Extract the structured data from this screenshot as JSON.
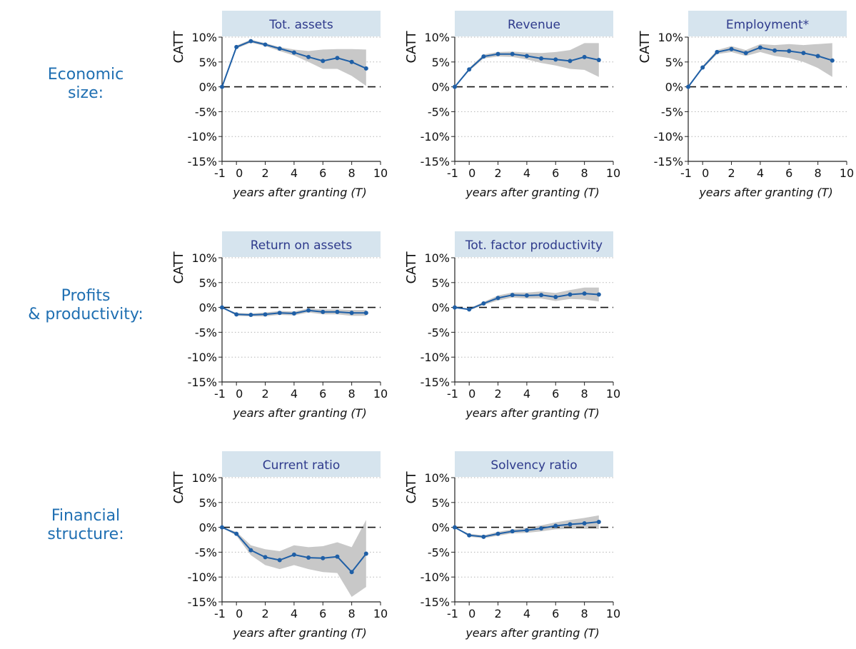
{
  "colors": {
    "line": "#1f5fa6",
    "band": "#c8c8c8",
    "header_bg": "#d6e4ee",
    "header_text": "#2e3a8c",
    "row_label": "#1f6fb2",
    "axis": "#222222"
  },
  "row_labels": [
    "Economic\nsize:",
    "Profits\n& productivity:",
    "Financial\nstructure:"
  ],
  "chart_data": [
    {
      "type": "line",
      "title": "Tot. assets",
      "ylabel": "CATT",
      "xlabel": "years after granting (T)",
      "xlim": [
        -1,
        10
      ],
      "ylim": [
        -15,
        10
      ],
      "x_ticks": [
        -1,
        0,
        2,
        4,
        6,
        8,
        10
      ],
      "y_ticks": [
        "10%",
        "5%",
        "0%",
        "-5%",
        "-10%",
        "-15%"
      ],
      "grid": "dotted horizontal",
      "x": [
        -1,
        0,
        1,
        2,
        3,
        4,
        5,
        6,
        7,
        8,
        9
      ],
      "y": [
        0,
        8.0,
        9.2,
        8.5,
        7.7,
        6.9,
        6.0,
        5.2,
        5.8,
        5.0,
        3.7
      ],
      "band_upper": [
        0,
        8.3,
        9.5,
        8.8,
        8.0,
        7.5,
        7.2,
        7.5,
        7.6,
        7.6,
        7.5
      ],
      "band_lower": [
        0,
        7.7,
        8.9,
        8.2,
        7.2,
        6.3,
        5.0,
        3.6,
        3.6,
        2.2,
        0.2
      ]
    },
    {
      "type": "line",
      "title": "Revenue",
      "ylabel": "CATT",
      "xlabel": "years after granting (T)",
      "xlim": [
        -1,
        10
      ],
      "ylim": [
        -15,
        10
      ],
      "x_ticks": [
        -1,
        0,
        2,
        4,
        6,
        8,
        10
      ],
      "y_ticks": [
        "10%",
        "5%",
        "0%",
        "-5%",
        "-10%",
        "-15%"
      ],
      "grid": "dotted horizontal",
      "x": [
        -1,
        0,
        1,
        2,
        3,
        4,
        5,
        6,
        7,
        8,
        9
      ],
      "y": [
        0,
        3.5,
        6.1,
        6.6,
        6.6,
        6.2,
        5.7,
        5.5,
        5.2,
        6.0,
        5.4
      ],
      "band_upper": [
        0,
        3.8,
        6.5,
        7.0,
        7.1,
        6.9,
        6.8,
        7.0,
        7.4,
        8.8,
        8.8
      ],
      "band_lower": [
        0,
        3.2,
        5.7,
        6.1,
        6.0,
        5.5,
        4.8,
        4.3,
        3.6,
        3.4,
        2.0
      ]
    },
    {
      "type": "line",
      "title": "Employment*",
      "ylabel": "CATT",
      "xlabel": "years after granting (T)",
      "xlim": [
        -1,
        10
      ],
      "ylim": [
        -15,
        10
      ],
      "x_ticks": [
        -1,
        0,
        2,
        4,
        6,
        8,
        10
      ],
      "y_ticks": [
        "10%",
        "5%",
        "0%",
        "-5%",
        "-10%",
        "-15%"
      ],
      "grid": "dotted horizontal",
      "x": [
        -1,
        0,
        1,
        2,
        3,
        4,
        5,
        6,
        7,
        8,
        9
      ],
      "y": [
        0,
        3.9,
        7.0,
        7.6,
        6.8,
        7.9,
        7.3,
        7.2,
        6.8,
        6.2,
        5.3
      ],
      "band_upper": [
        0,
        4.2,
        7.4,
        8.2,
        7.4,
        8.6,
        8.4,
        8.6,
        8.4,
        8.6,
        8.8
      ],
      "band_lower": [
        0,
        3.6,
        6.6,
        7.0,
        6.2,
        7.0,
        6.2,
        5.8,
        5.0,
        3.8,
        2.0
      ]
    },
    {
      "type": "line",
      "title": "Return on assets",
      "ylabel": "CATT",
      "xlabel": "years after granting (T)",
      "xlim": [
        -1,
        10
      ],
      "ylim": [
        -15,
        10
      ],
      "x_ticks": [
        -1,
        0,
        2,
        4,
        6,
        8,
        10
      ],
      "y_ticks": [
        "10%",
        "5%",
        "0%",
        "-5%",
        "-10%",
        "-15%"
      ],
      "grid": "dotted horizontal",
      "x": [
        -1,
        0,
        1,
        2,
        3,
        4,
        5,
        6,
        7,
        8,
        9
      ],
      "y": [
        0,
        -1.4,
        -1.5,
        -1.4,
        -1.1,
        -1.2,
        -0.6,
        -0.9,
        -0.9,
        -1.1,
        -1.1
      ],
      "band_upper": [
        0,
        -1.1,
        -1.2,
        -1.0,
        -0.7,
        -0.8,
        -0.2,
        -0.4,
        -0.4,
        -0.5,
        -0.5
      ],
      "band_lower": [
        0,
        -1.7,
        -1.8,
        -1.8,
        -1.5,
        -1.6,
        -1.0,
        -1.4,
        -1.4,
        -1.7,
        -1.7
      ]
    },
    {
      "type": "line",
      "title": "Tot. factor productivity",
      "ylabel": "CATT",
      "xlabel": "years after granting (T)",
      "xlim": [
        -1,
        10
      ],
      "ylim": [
        -15,
        10
      ],
      "x_ticks": [
        -1,
        0,
        2,
        4,
        6,
        8,
        10
      ],
      "y_ticks": [
        "10%",
        "5%",
        "0%",
        "-5%",
        "-10%",
        "-15%"
      ],
      "grid": "dotted horizontal",
      "x": [
        -1,
        0,
        1,
        2,
        3,
        4,
        5,
        6,
        7,
        8,
        9
      ],
      "y": [
        0,
        -0.4,
        0.8,
        1.9,
        2.5,
        2.4,
        2.5,
        2.1,
        2.6,
        2.8,
        2.6
      ],
      "band_upper": [
        0,
        -0.2,
        1.1,
        2.4,
        3.0,
        3.0,
        3.2,
        2.9,
        3.5,
        4.0,
        4.0
      ],
      "band_lower": [
        0,
        -0.6,
        0.5,
        1.4,
        2.0,
        1.8,
        1.8,
        1.3,
        1.7,
        1.6,
        1.2
      ]
    },
    {
      "type": "line",
      "title": "Current ratio",
      "ylabel": "CATT",
      "xlabel": "years after granting (T)",
      "xlim": [
        -1,
        10
      ],
      "ylim": [
        -15,
        10
      ],
      "x_ticks": [
        -1,
        0,
        2,
        4,
        6,
        8,
        10
      ],
      "y_ticks": [
        "10%",
        "5%",
        "0%",
        "-5%",
        "-10%",
        "-15%"
      ],
      "grid": "dotted horizontal",
      "x": [
        -1,
        0,
        1,
        2,
        3,
        4,
        5,
        6,
        7,
        8,
        9
      ],
      "y": [
        0,
        -1.3,
        -4.6,
        -6.0,
        -6.6,
        -5.5,
        -6.1,
        -6.2,
        -5.9,
        -9.0,
        -5.3
      ],
      "band_upper": [
        0,
        -0.9,
        -3.6,
        -4.4,
        -4.8,
        -3.6,
        -4.0,
        -3.8,
        -3.0,
        -4.0,
        1.5
      ],
      "band_lower": [
        0,
        -1.7,
        -5.6,
        -7.6,
        -8.4,
        -7.6,
        -8.4,
        -9.0,
        -9.2,
        -14.0,
        -12.0
      ]
    },
    {
      "type": "line",
      "title": "Solvency ratio",
      "ylabel": "CATT",
      "xlabel": "years after granting (T)",
      "xlim": [
        -1,
        10
      ],
      "ylim": [
        -15,
        10
      ],
      "x_ticks": [
        -1,
        0,
        2,
        4,
        6,
        8,
        10
      ],
      "y_ticks": [
        "10%",
        "5%",
        "0%",
        "-5%",
        "-10%",
        "-15%"
      ],
      "grid": "dotted horizontal",
      "x": [
        -1,
        0,
        1,
        2,
        3,
        4,
        5,
        6,
        7,
        8,
        9
      ],
      "y": [
        0,
        -1.6,
        -1.9,
        -1.3,
        -0.8,
        -0.6,
        -0.2,
        0.3,
        0.6,
        0.8,
        1.1
      ],
      "band_upper": [
        0,
        -1.3,
        -1.6,
        -0.9,
        -0.4,
        -0.1,
        0.4,
        1.0,
        1.5,
        1.9,
        2.4
      ],
      "band_lower": [
        0,
        -1.9,
        -2.2,
        -1.7,
        -1.2,
        -1.1,
        -0.8,
        -0.4,
        -0.3,
        -0.3,
        -0.3
      ]
    }
  ]
}
